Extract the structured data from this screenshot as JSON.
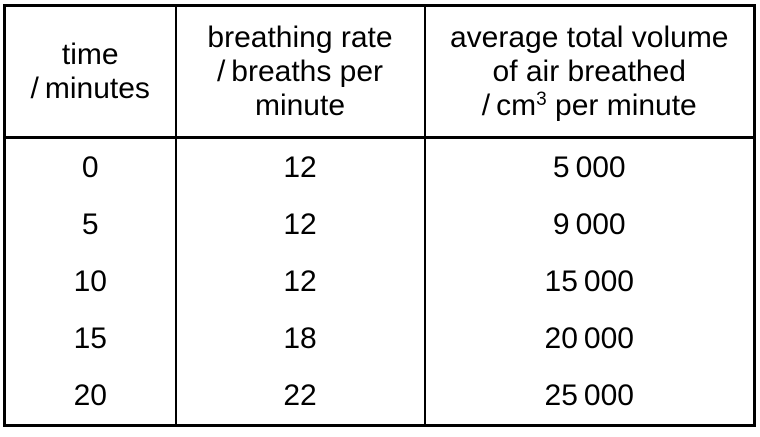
{
  "table": {
    "headers": {
      "time": {
        "lines": [
          "time",
          "/ minutes"
        ]
      },
      "rate": {
        "lines": [
          "breathing rate",
          "/ breaths per",
          "minute"
        ]
      },
      "volume": {
        "lines": [
          "average total volume",
          "of air breathed"
        ],
        "unit_pre": "/ cm",
        "unit_sup": "3",
        "unit_post": " per minute"
      }
    },
    "rows": [
      {
        "time": "0",
        "rate": "12",
        "volume": "5 000"
      },
      {
        "time": "5",
        "rate": "12",
        "volume": "9 000"
      },
      {
        "time": "10",
        "rate": "12",
        "volume": "15 000"
      },
      {
        "time": "15",
        "rate": "18",
        "volume": "20 000"
      },
      {
        "time": "20",
        "rate": "22",
        "volume": "25 000"
      }
    ],
    "colors": {
      "border": "#000000",
      "text": "#000000",
      "background": "#ffffff"
    }
  }
}
